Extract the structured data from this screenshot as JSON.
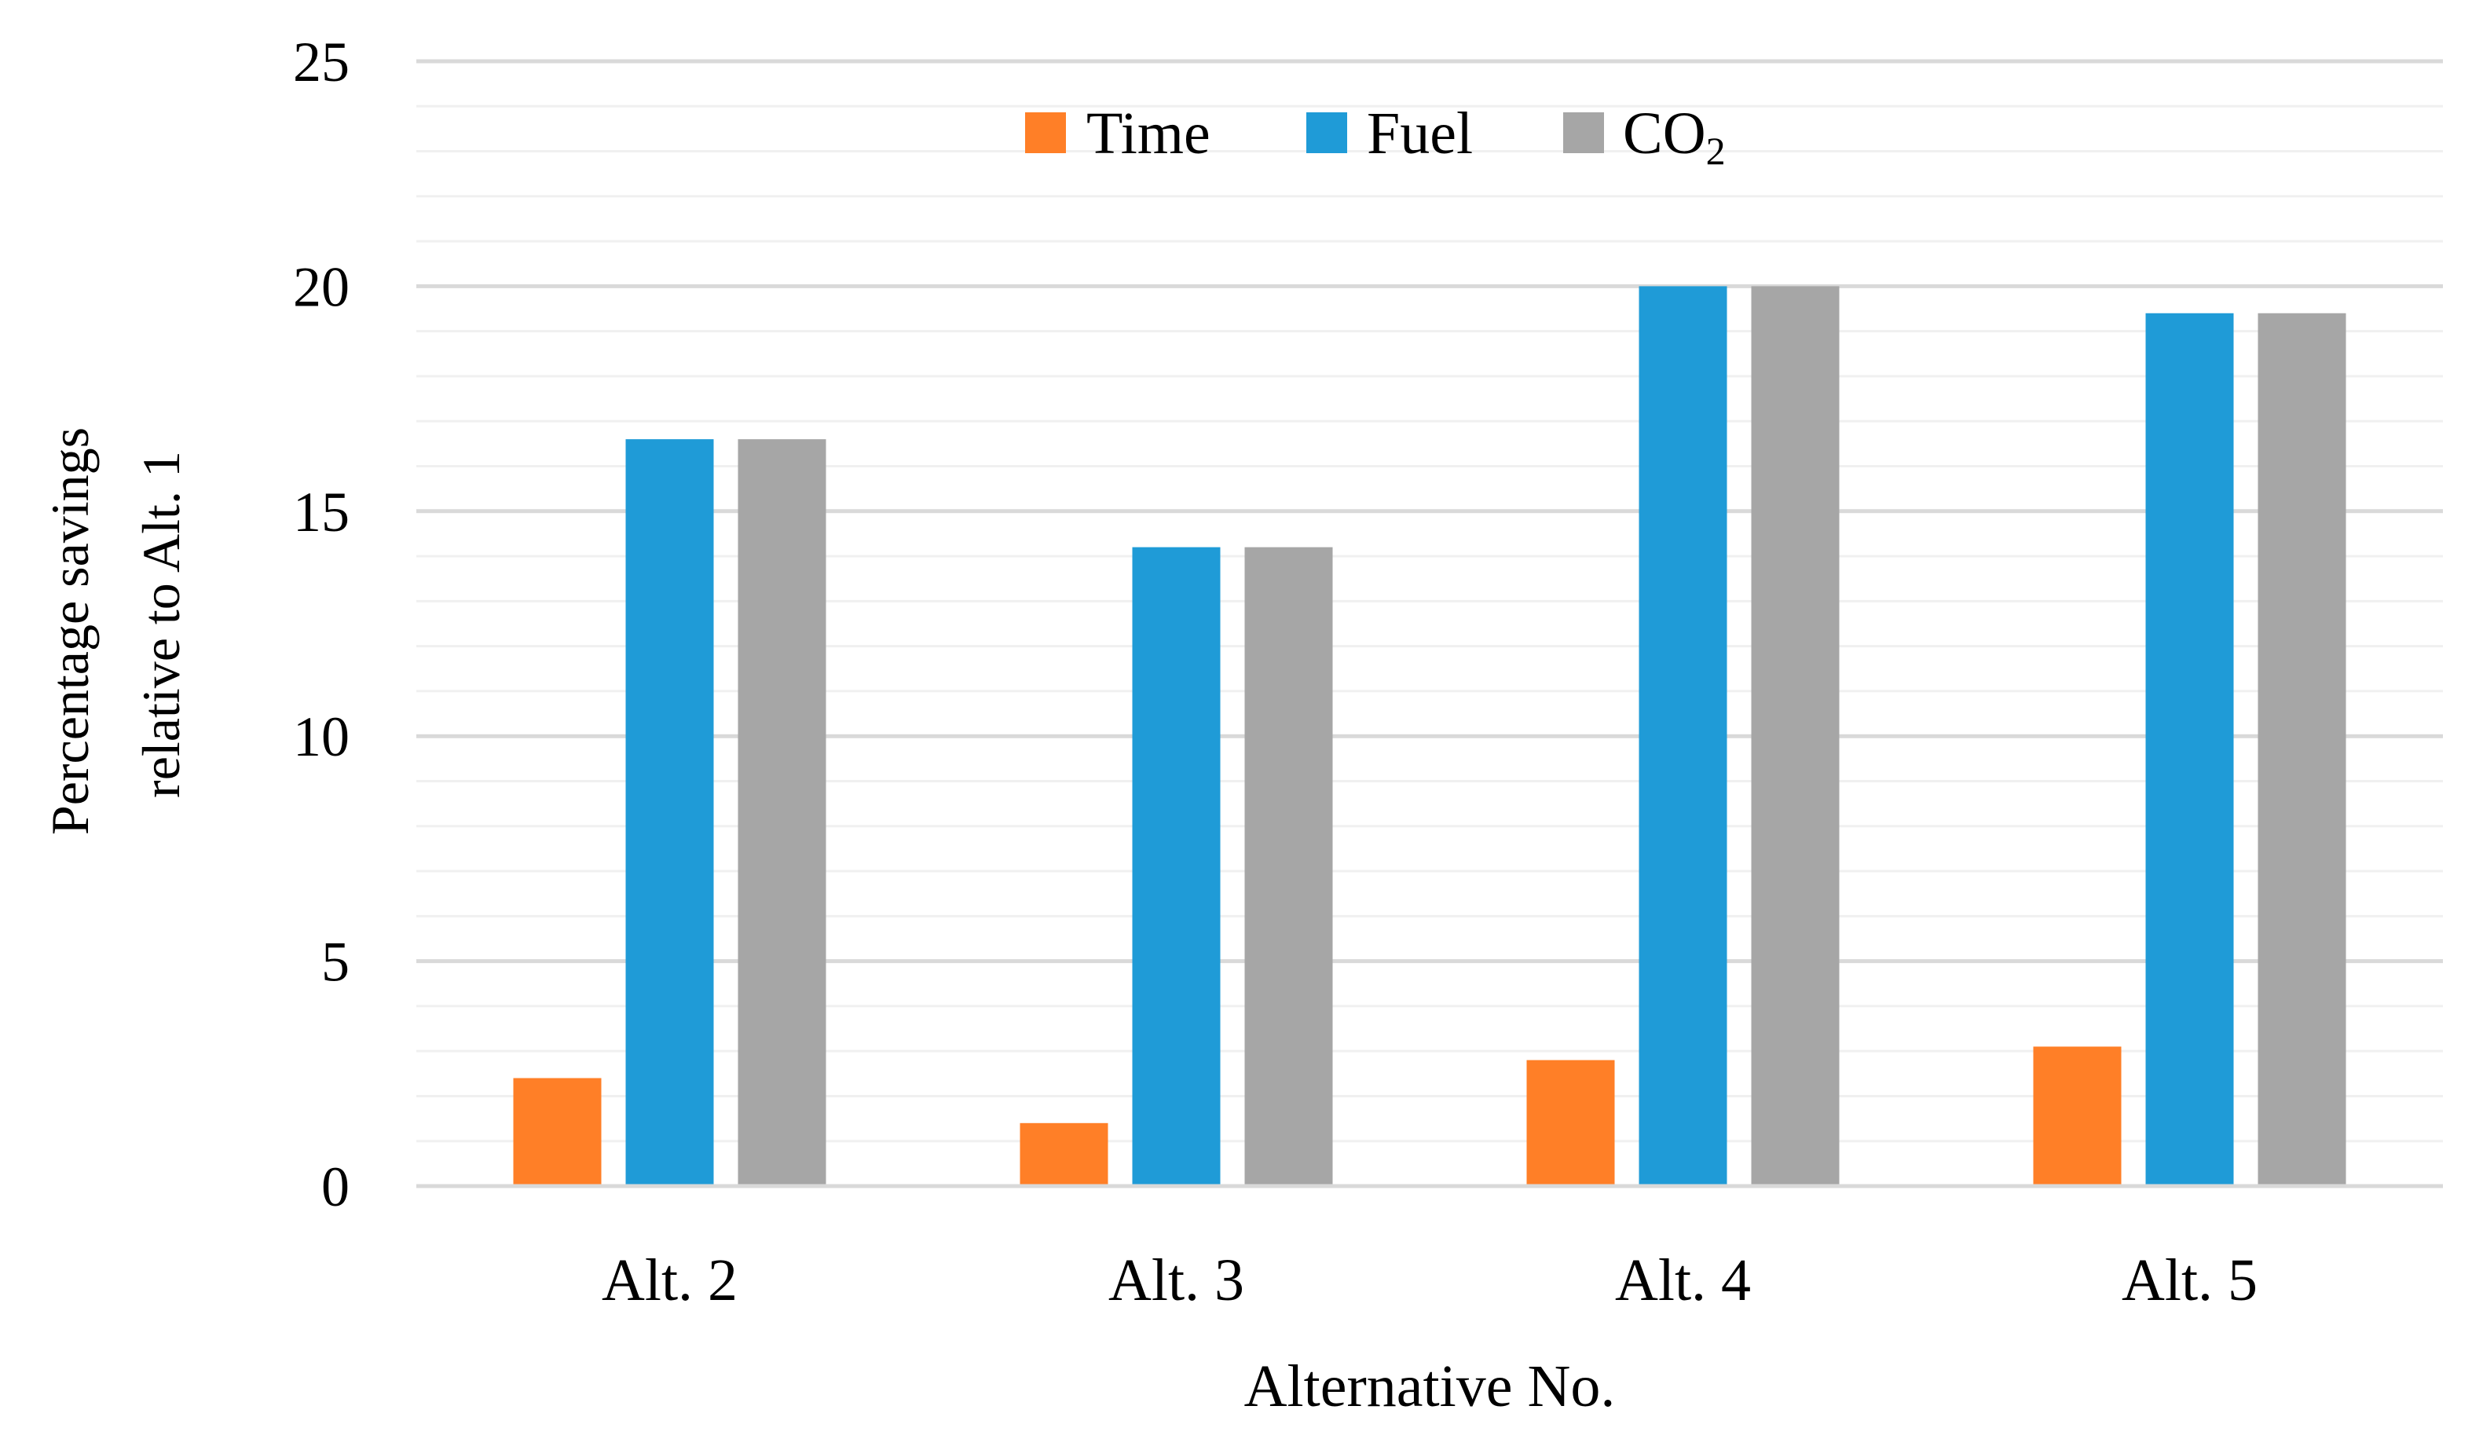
{
  "chart_data": {
    "type": "bar",
    "title": "",
    "xlabel": "Alternative No.",
    "ylabel_lines": [
      "Percentage savings",
      "relative to Alt. 1"
    ],
    "categories": [
      "Alt. 2",
      "Alt. 3",
      "Alt. 4",
      "Alt. 5"
    ],
    "ylim": [
      0,
      25
    ],
    "yticks": [
      0,
      5,
      10,
      15,
      20,
      25
    ],
    "minor_step": 1,
    "grid": true,
    "legend_position": "top-center",
    "series": [
      {
        "name": "Time",
        "label_main": "Time",
        "label_sub": "",
        "color": "#FF7F27",
        "values": [
          2.4,
          1.4,
          2.8,
          3.1
        ]
      },
      {
        "name": "Fuel",
        "label_main": "Fuel",
        "label_sub": "",
        "color": "#1F9BD7",
        "values": [
          16.6,
          14.2,
          20.0,
          19.4
        ]
      },
      {
        "name": "CO2",
        "label_main": "CO",
        "label_sub": "2",
        "color": "#A6A6A6",
        "values": [
          16.6,
          14.2,
          20.0,
          19.4
        ]
      }
    ],
    "colors": {
      "major_grid": "#D9D9D9",
      "minor_grid": "#F0F0F0",
      "axis": "#D9D9D9"
    }
  }
}
